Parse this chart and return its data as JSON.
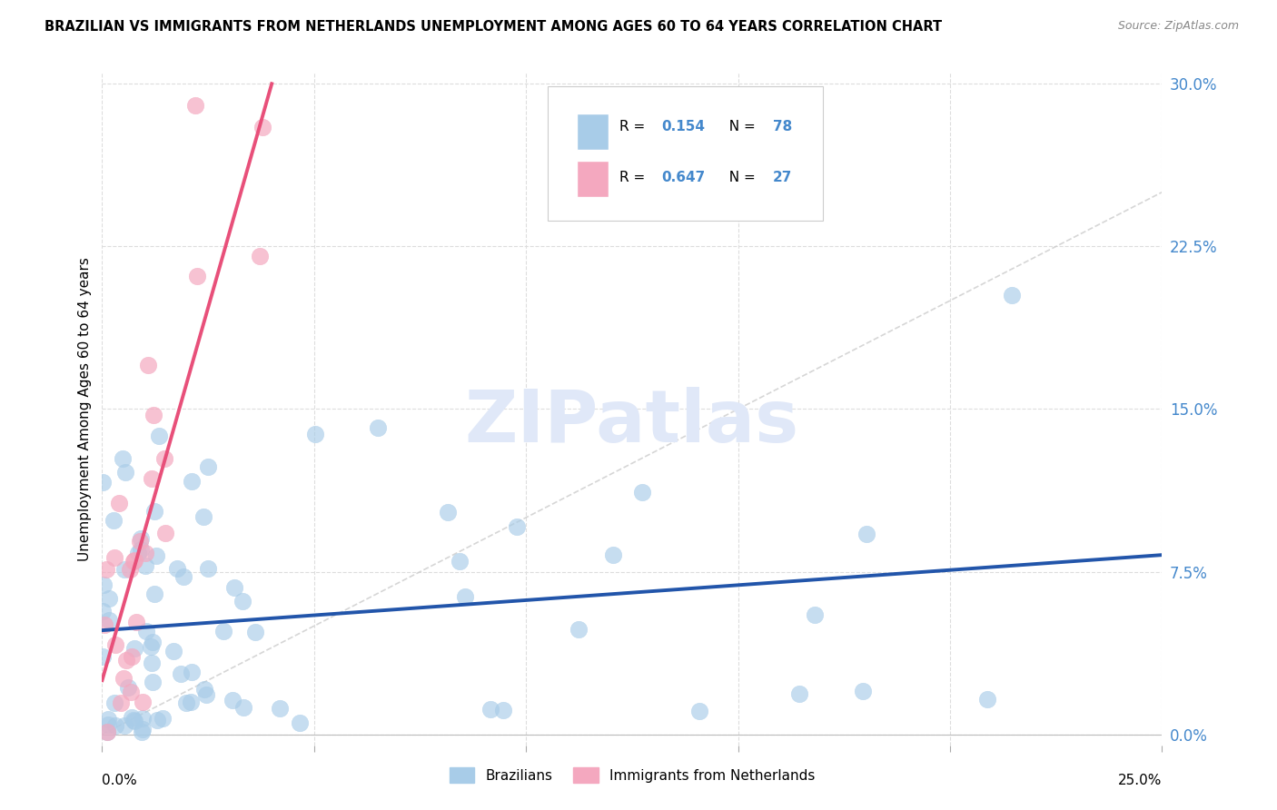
{
  "title": "BRAZILIAN VS IMMIGRANTS FROM NETHERLANDS UNEMPLOYMENT AMONG AGES 60 TO 64 YEARS CORRELATION CHART",
  "source": "Source: ZipAtlas.com",
  "x_min": 0.0,
  "x_max": 0.25,
  "y_min": 0.0,
  "y_max": 0.3,
  "ytick_vals": [
    0.0,
    0.075,
    0.15,
    0.225,
    0.3
  ],
  "ytick_labels": [
    "0.0%",
    "7.5%",
    "15.0%",
    "22.5%",
    "30.0%"
  ],
  "xtick_vals": [
    0.0,
    0.05,
    0.1,
    0.15,
    0.2,
    0.25
  ],
  "blue_scatter_color": "#a8cce8",
  "pink_scatter_color": "#f4a8bf",
  "blue_line_color": "#2255aa",
  "pink_line_color": "#e8507a",
  "diag_color": "#cccccc",
  "grid_color": "#dddddd",
  "right_tick_color": "#4488cc",
  "watermark_color": "#e0e8f8",
  "legend_edge_color": "#cccccc",
  "r_text_color": "#4488cc",
  "bg_color": "#ffffff",
  "brazil_seed": 12,
  "neth_seed": 7
}
